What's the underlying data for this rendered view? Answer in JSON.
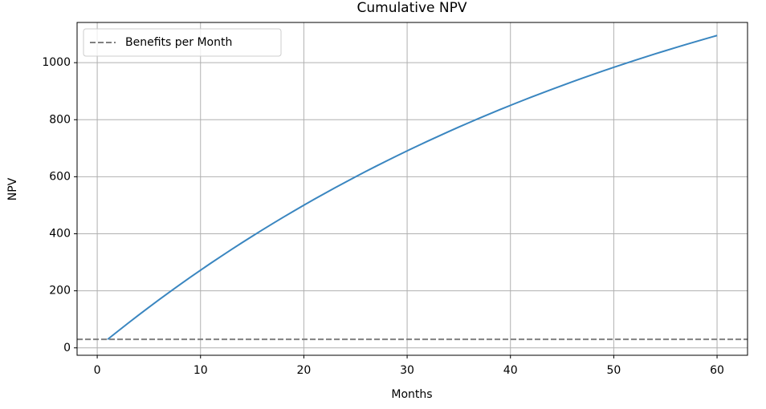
{
  "chart_data": {
    "type": "line",
    "title": "Cumulative NPV",
    "x_label": "Months",
    "y_label": "NPV",
    "x": [
      1,
      2,
      3,
      4,
      5,
      6,
      7,
      8,
      9,
      10,
      11,
      12,
      13,
      14,
      15,
      16,
      17,
      18,
      19,
      20,
      21,
      22,
      23,
      24,
      25,
      26,
      27,
      28,
      29,
      30,
      31,
      32,
      33,
      34,
      35,
      36,
      37,
      38,
      39,
      40,
      41,
      42,
      43,
      44,
      45,
      46,
      47,
      48,
      49,
      50,
      51,
      52,
      53,
      54,
      55,
      56,
      57,
      58,
      59,
      60
    ],
    "series": [
      {
        "color": "#3a86c0",
        "values": [
          29.5,
          58.4,
          86.8,
          114.8,
          142.2,
          169.2,
          195.7,
          221.7,
          247.2,
          272.3,
          297.0,
          321.2,
          345.0,
          368.4,
          391.3,
          413.9,
          436.0,
          457.8,
          479.2,
          500.2,
          520.8,
          541.1,
          561.0,
          580.5,
          599.7,
          618.6,
          637.1,
          655.3,
          673.2,
          690.8,
          708.0,
          725.0,
          741.6,
          758.0,
          774.1,
          789.9,
          805.4,
          820.6,
          835.6,
          850.3,
          864.7,
          878.9,
          892.8,
          906.5,
          919.9,
          933.1,
          946.1,
          958.9,
          971.4,
          983.7,
          995.7,
          1007.6,
          1019.3,
          1030.7,
          1041.9,
          1053.0,
          1063.9,
          1074.5,
          1085.0,
          1095.3
        ]
      }
    ],
    "reference_line": {
      "name": "Benefits per Month",
      "value": 30,
      "color": "#808080"
    },
    "xlim": [
      -1.95,
      62.95
    ],
    "xticks": [
      0,
      10,
      20,
      30,
      40,
      50,
      60
    ],
    "ylim": [
      -26,
      1141
    ],
    "yticks": [
      0,
      200,
      400,
      600,
      800,
      1000
    ],
    "grid": true,
    "legend": "upper left"
  }
}
